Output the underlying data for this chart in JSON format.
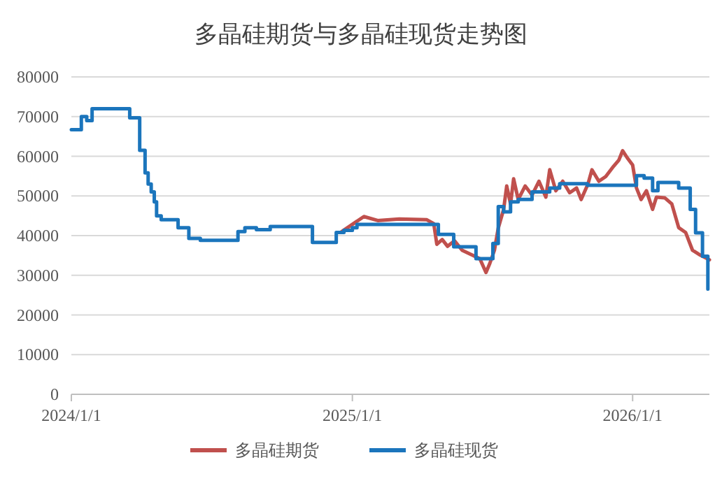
{
  "chart_data": {
    "type": "line",
    "title": "多晶硅期货与多晶硅现货走势图",
    "xlim": [
      "2024-01-01",
      "2026-04-11"
    ],
    "xticks": [
      {
        "value": "2024-01-01",
        "label": "2024/1/1"
      },
      {
        "value": "2025-01-01",
        "label": "2025/1/1"
      },
      {
        "value": "2026-01-01",
        "label": "2026/1/1"
      }
    ],
    "ylim": [
      0,
      80000
    ],
    "yticks": [
      0,
      10000,
      20000,
      30000,
      40000,
      50000,
      60000,
      70000,
      80000
    ],
    "grid": "y",
    "legend": "bottom",
    "marker": "none",
    "line_style": "solid",
    "series": [
      {
        "name": "多晶硅期货",
        "color": "#c0504d",
        "type": "line",
        "x": [
          "2024-12-18",
          "2025-01-16",
          "2025-02-03",
          "2025-03-03",
          "2025-04-08",
          "2025-04-17",
          "2025-04-21",
          "2025-04-28",
          "2025-05-05",
          "2025-05-14",
          "2025-05-24",
          "2025-06-05",
          "2025-06-16",
          "2025-06-24",
          "2025-06-29",
          "2025-07-05",
          "2025-07-10",
          "2025-07-17",
          "2025-07-21",
          "2025-07-26",
          "2025-07-30",
          "2025-08-05",
          "2025-08-14",
          "2025-08-23",
          "2025-09-01",
          "2025-09-10",
          "2025-09-15",
          "2025-09-23",
          "2025-10-02",
          "2025-10-11",
          "2025-10-20",
          "2025-10-26",
          "2025-11-04",
          "2025-11-09",
          "2025-11-18",
          "2025-11-27",
          "2025-12-06",
          "2025-12-14",
          "2025-12-19",
          "2025-12-25",
          "2026-01-01",
          "2026-01-06",
          "2026-01-12",
          "2026-01-19",
          "2026-01-27",
          "2026-02-01",
          "2026-02-12",
          "2026-02-21",
          "2026-03-02",
          "2026-03-11",
          "2026-03-20",
          "2026-03-30",
          "2026-04-11"
        ],
        "values": [
          41000,
          44800,
          43800,
          44200,
          44000,
          43000,
          37800,
          39000,
          37300,
          38700,
          36300,
          35200,
          34200,
          30700,
          33000,
          36300,
          41900,
          46600,
          52500,
          48000,
          54300,
          49100,
          52500,
          50200,
          53700,
          49700,
          56600,
          51300,
          53700,
          50800,
          52000,
          49100,
          53100,
          56600,
          53700,
          54900,
          57200,
          59000,
          61400,
          59600,
          57800,
          52000,
          49100,
          51300,
          46600,
          49700,
          49500,
          48000,
          42000,
          40800,
          36300,
          35100,
          33900
        ]
      },
      {
        "name": "多晶硅现货",
        "color": "#1b75bc",
        "type": "step",
        "x": [
          "2024-01-01",
          "2024-01-14",
          "2024-01-21",
          "2024-01-28",
          "2024-03-17",
          "2024-03-30",
          "2024-04-06",
          "2024-04-10",
          "2024-04-14",
          "2024-04-18",
          "2024-04-21",
          "2024-04-27",
          "2024-05-19",
          "2024-06-02",
          "2024-06-17",
          "2024-08-05",
          "2024-08-14",
          "2024-08-29",
          "2024-09-16",
          "2024-11-10",
          "2024-12-11",
          "2024-12-21",
          "2025-01-01",
          "2025-01-07",
          "2025-04-23",
          "2025-05-13",
          "2025-06-11",
          "2025-07-03",
          "2025-07-10",
          "2025-07-17",
          "2025-07-26",
          "2025-08-05",
          "2025-08-23",
          "2025-09-15",
          "2025-09-28",
          "2025-11-03",
          "2026-01-06",
          "2026-01-16",
          "2026-01-27",
          "2026-02-03",
          "2026-03-02",
          "2026-03-17",
          "2026-03-24",
          "2026-04-02",
          "2026-04-09"
        ],
        "values": [
          66700,
          70000,
          69000,
          72000,
          69700,
          61500,
          55800,
          53000,
          51000,
          48500,
          45000,
          44000,
          42000,
          39300,
          38800,
          41000,
          42000,
          41500,
          42300,
          38300,
          40800,
          41300,
          42000,
          42800,
          40300,
          37200,
          34200,
          38000,
          47300,
          46000,
          48500,
          49100,
          51000,
          52000,
          53100,
          52700,
          55100,
          54500,
          51300,
          53400,
          52000,
          46600,
          40700,
          34800,
          26500
        ]
      }
    ]
  }
}
